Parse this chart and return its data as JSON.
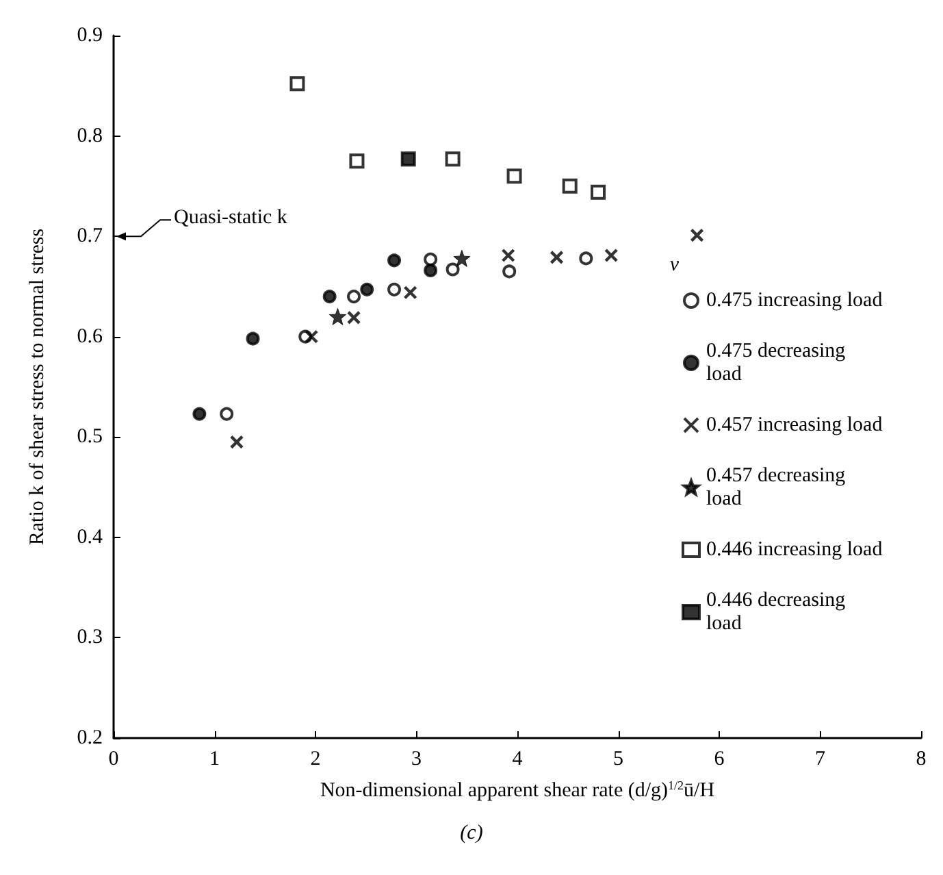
{
  "chart_data": {
    "type": "scatter",
    "xlabel": "Non-dimensional apparent shear rate (d/g)$^{1/2}$ū/H",
    "ylabel": "Ratio k of shear stress to normal stress",
    "legend_title": "ν",
    "legend": "right",
    "grid": false,
    "xlim": [
      0,
      8
    ],
    "xticks": [
      0,
      1,
      2,
      3,
      4,
      5,
      6,
      7,
      8
    ],
    "ylim": [
      0.2,
      0.9
    ],
    "yticks": [
      0.2,
      0.3,
      0.4,
      0.5,
      0.6,
      0.7,
      0.8,
      0.9
    ],
    "annotations": [
      "Quasi-static k",
      "(c)"
    ],
    "series": [
      {
        "name": "0.475 increasing load",
        "color": "#ffffff",
        "marker": "circle",
        "x": [
          1.12,
          1.9,
          2.38,
          2.78,
          3.14,
          3.36,
          3.92,
          4.68
        ],
        "values": [
          0.523,
          0.6,
          0.64,
          0.647,
          0.677,
          0.667,
          0.665,
          0.678
        ]
      },
      {
        "name": "0.475 decreasing load",
        "color": "#000000",
        "marker": "circle",
        "x": [
          0.85,
          1.38,
          2.14,
          2.51,
          2.78,
          3.14
        ],
        "values": [
          0.523,
          0.598,
          0.64,
          0.647,
          0.676,
          0.666
        ]
      },
      {
        "name": "0.457 increasing load",
        "color": "#000000",
        "marker": "cross",
        "x": [
          1.22,
          1.96,
          2.38,
          2.94,
          3.91,
          4.39,
          4.93,
          5.78
        ],
        "values": [
          0.495,
          0.6,
          0.619,
          0.644,
          0.681,
          0.679,
          0.681,
          0.701
        ]
      },
      {
        "name": "0.457 decreasing load",
        "color": "#000000",
        "marker": "star",
        "x": [
          2.22,
          3.45
        ],
        "values": [
          0.62,
          0.678
        ]
      },
      {
        "name": "0.446 increasing load",
        "color": "#ffffff",
        "marker": "square",
        "x": [
          1.82,
          2.41,
          3.36,
          3.97,
          4.52,
          4.8
        ],
        "values": [
          0.852,
          0.775,
          0.777,
          0.76,
          0.75,
          0.744
        ]
      },
      {
        "name": "0.446 decreasing load",
        "color": "#000000",
        "marker": "square",
        "x": [
          2.92
        ],
        "values": [
          0.777
        ]
      }
    ]
  }
}
